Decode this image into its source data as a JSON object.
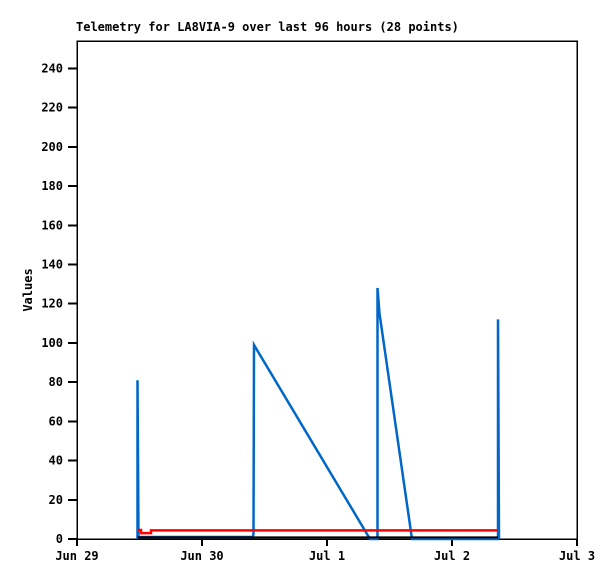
{
  "chart_data": {
    "type": "line",
    "title": "Telemetry for LA8VIA-9 over last 96 hours (28 points)",
    "ylabel": "Values",
    "plot": {
      "background": "#ffffff",
      "border_color": "#000000",
      "grid": "off",
      "legend": "none"
    },
    "x_axis": {
      "tick_labels": [
        "Jun 29",
        "Jun 30",
        "Jul 1",
        "Jul 2",
        "Jul 3"
      ],
      "domain_days": [
        0,
        4
      ],
      "unit": "date"
    },
    "y_axis": {
      "ticks": [
        0,
        20,
        40,
        60,
        80,
        100,
        120,
        140,
        160,
        180,
        200,
        220,
        240
      ],
      "lim": [
        0,
        254
      ]
    },
    "series": [
      {
        "name": "blue",
        "color": "#0067c8",
        "stroke_width": 2.5,
        "points_days_value": [
          [
            0.484,
            0
          ],
          [
            0.484,
            81
          ],
          [
            0.492,
            1
          ],
          [
            1.408,
            1
          ],
          [
            1.412,
            3
          ],
          [
            1.416,
            99
          ],
          [
            2.344,
            0
          ],
          [
            2.404,
            0
          ],
          [
            2.404,
            128
          ],
          [
            2.42,
            115
          ],
          [
            2.68,
            0
          ],
          [
            3.368,
            0
          ],
          [
            3.368,
            112
          ],
          [
            3.376,
            0
          ]
        ]
      },
      {
        "name": "red",
        "color": "#ff0000",
        "stroke_width": 2.5,
        "points_days_value": [
          [
            0.484,
            4.6
          ],
          [
            0.512,
            4.6
          ],
          [
            0.512,
            3.0
          ],
          [
            0.592,
            3.0
          ],
          [
            0.592,
            4.4
          ],
          [
            3.368,
            4.4
          ]
        ]
      },
      {
        "name": "black",
        "color": "#000000",
        "stroke_width": 2,
        "points_days_value": [
          [
            0.484,
            0.8
          ],
          [
            3.368,
            0.8
          ]
        ]
      }
    ]
  }
}
